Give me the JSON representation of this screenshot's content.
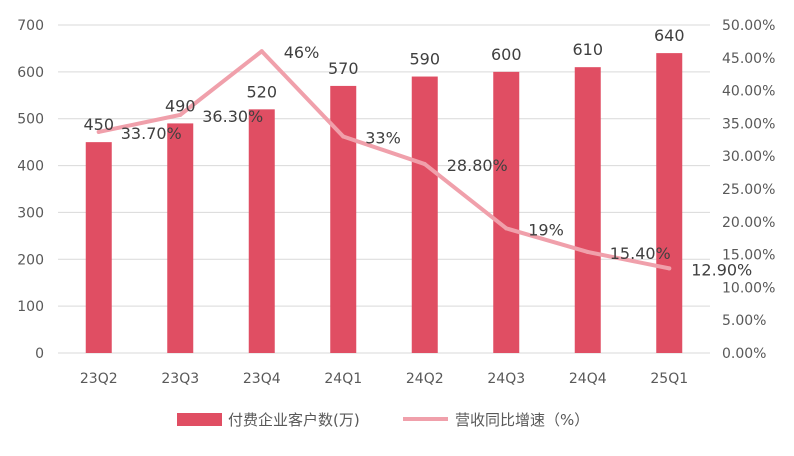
{
  "chart_data": {
    "type": "bar",
    "categories": [
      "23Q2",
      "23Q3",
      "23Q4",
      "24Q1",
      "24Q2",
      "24Q3",
      "24Q4",
      "25Q1"
    ],
    "series": [
      {
        "name": "付费企业客户数(万)",
        "type": "bar",
        "axis": "left",
        "values": [
          450,
          490,
          520,
          570,
          590,
          600,
          610,
          640
        ],
        "labels": [
          "450",
          "490",
          "520",
          "570",
          "590",
          "600",
          "610",
          "640"
        ]
      },
      {
        "name": "营收同比增速（%）",
        "type": "line",
        "axis": "right",
        "values": [
          33.7,
          36.3,
          46,
          33,
          28.8,
          19,
          15.4,
          12.9
        ],
        "labels": [
          "33.70%",
          "36.30%",
          "46%",
          "33%",
          "28.80%",
          "19%",
          "15.40%",
          "12.90%"
        ]
      }
    ],
    "y_left": {
      "ylim": [
        0,
        700
      ],
      "ticks": [
        "0",
        "100",
        "200",
        "300",
        "400",
        "500",
        "600",
        "700"
      ]
    },
    "y_right": {
      "ylim": [
        0,
        50
      ],
      "ticks": [
        "0.00%",
        "5.00%",
        "10.00%",
        "15.00%",
        "20.00%",
        "25.00%",
        "30.00%",
        "35.00%",
        "40.00%",
        "45.00%",
        "50.00%"
      ]
    },
    "grid": true,
    "legend": "bottom",
    "colors": {
      "bar": "#e04e63",
      "line": "#f0a0ab",
      "grid": "#d9d9d9",
      "text": "#595959",
      "label": "#404040"
    }
  }
}
